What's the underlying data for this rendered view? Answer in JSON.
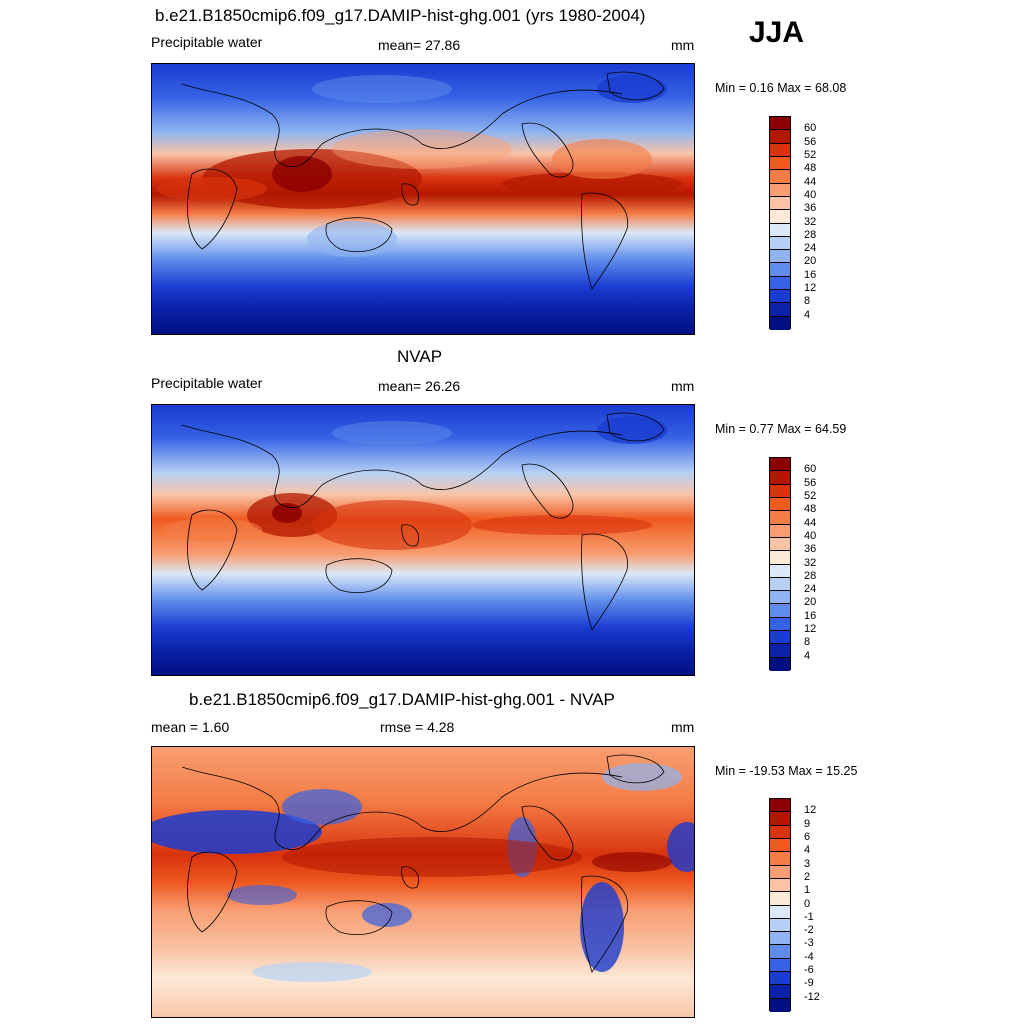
{
  "season": "JJA",
  "panels": [
    {
      "title": "b.e21.B1850cmip6.f09_g17.DAMIP-hist-ghg.001 (yrs 1980-2004)",
      "left_label": "Precipitable water",
      "center_label": "mean=  27.86",
      "units": "mm",
      "minmax": "Min =   0.16 Max =  68.08",
      "colorbar_labels": [
        "60",
        "56",
        "52",
        "48",
        "44",
        "40",
        "36",
        "32",
        "28",
        "24",
        "20",
        "16",
        "12",
        "8",
        "4"
      ],
      "colorbar_colors": [
        "#8b0000",
        "#b21800",
        "#d8330e",
        "#ee5a20",
        "#f47c45",
        "#f89e72",
        "#f9c4a6",
        "#fde9d8",
        "#dbe9f8",
        "#b7d1f5",
        "#8fb4f1",
        "#5f8ceb",
        "#3562e4",
        "#1a3cd0",
        "#0b22a8",
        "#000f80"
      ]
    },
    {
      "title": "NVAP",
      "left_label": "Precipitable water",
      "center_label": "mean=  26.26",
      "units": "mm",
      "minmax": "Min =   0.77 Max =  64.59",
      "colorbar_labels": [
        "60",
        "56",
        "52",
        "48",
        "44",
        "40",
        "36",
        "32",
        "28",
        "24",
        "20",
        "16",
        "12",
        "8",
        "4"
      ],
      "colorbar_colors": [
        "#8b0000",
        "#b21800",
        "#d8330e",
        "#ee5a20",
        "#f47c45",
        "#f89e72",
        "#f9c4a6",
        "#fde9d8",
        "#dbe9f8",
        "#b7d1f5",
        "#8fb4f1",
        "#5f8ceb",
        "#3562e4",
        "#1a3cd0",
        "#0b22a8",
        "#000f80"
      ]
    },
    {
      "title": "b.e21.B1850cmip6.f09_g17.DAMIP-hist-ghg.001 - NVAP",
      "left_label": "mean =   1.60",
      "center_label": "rmse =   4.28",
      "units": "mm",
      "minmax": "Min = -19.53 Max =  15.25",
      "colorbar_labels": [
        "12",
        "9",
        "6",
        "4",
        "3",
        "2",
        "1",
        "0",
        "-1",
        "-2",
        "-3",
        "-4",
        "-6",
        "-9",
        "-12"
      ],
      "colorbar_colors": [
        "#8b0000",
        "#b21800",
        "#d8330e",
        "#ee5a20",
        "#f47c45",
        "#f89e72",
        "#f9c4a6",
        "#fde9d8",
        "#dbe9f8",
        "#b7d1f5",
        "#8fb4f1",
        "#5f8ceb",
        "#3562e4",
        "#1a3cd0",
        "#0b22a8",
        "#000f80"
      ]
    }
  ]
}
